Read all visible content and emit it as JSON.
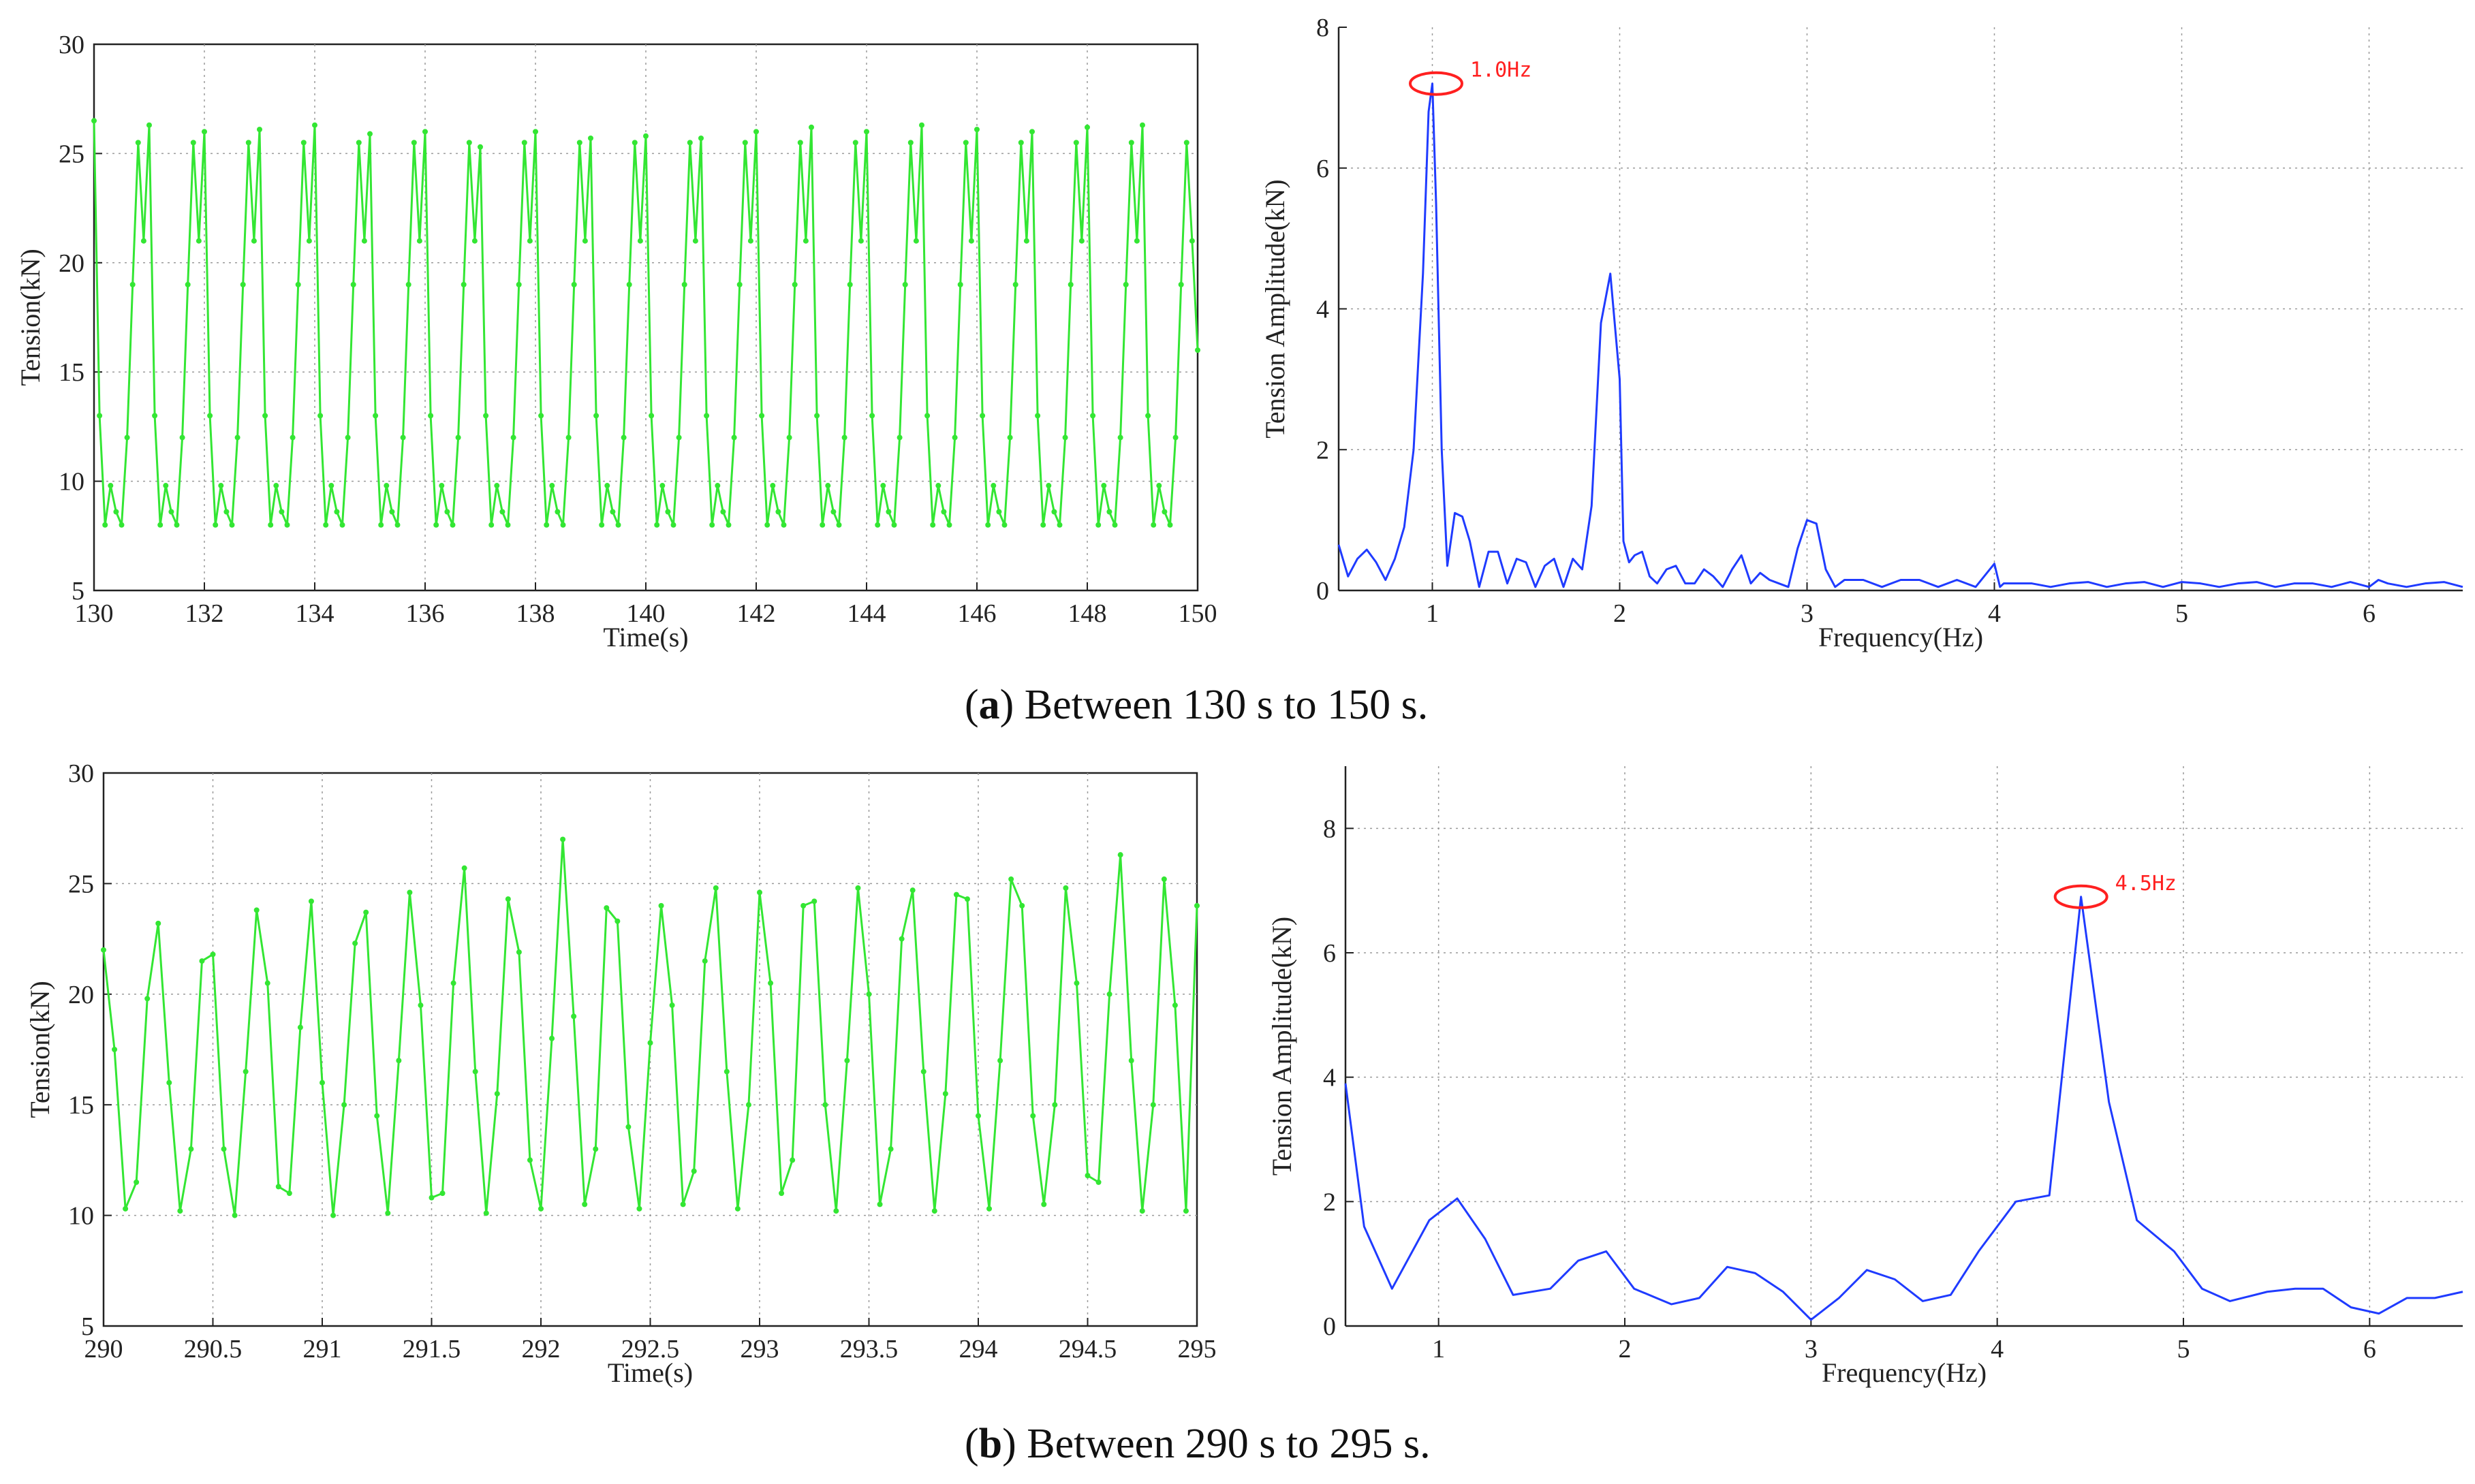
{
  "captions": {
    "a": {
      "label": "a",
      "text": ") Between 130 s to 150 s."
    },
    "b": {
      "label": "b",
      "text": ") Between 290 s to 295 s."
    }
  },
  "colors": {
    "time_series": "#33e633",
    "spectrum": "#1f3bff",
    "annotation": "#ff2020"
  },
  "chart_data": [
    {
      "id": "a-time",
      "type": "line",
      "xlabel": "Time(s)",
      "ylabel": "Tension(kN)",
      "xlim": [
        130,
        150
      ],
      "ylim": [
        5,
        30
      ],
      "xticks": [
        130,
        132,
        134,
        136,
        138,
        140,
        142,
        144,
        146,
        148,
        150
      ],
      "yticks": [
        5,
        10,
        15,
        20,
        25,
        30
      ],
      "grid": true,
      "series": [
        {
          "name": "tension",
          "color": "#33e633",
          "markers": true,
          "x": [
            130.0,
            130.1,
            130.2,
            130.3,
            130.4,
            130.5,
            130.6,
            130.7,
            130.8,
            130.9,
            131.0,
            131.1,
            131.2,
            131.3,
            131.4,
            131.5,
            131.6,
            131.7,
            131.8,
            131.9,
            132.0,
            132.1,
            132.2,
            132.3,
            132.4,
            132.5,
            132.6,
            132.7,
            132.8,
            132.9,
            133.0,
            133.1,
            133.2,
            133.3,
            133.4,
            133.5,
            133.6,
            133.7,
            133.8,
            133.9,
            134.0,
            134.1,
            134.2,
            134.3,
            134.4,
            134.5,
            134.6,
            134.7,
            134.8,
            134.9,
            135.0,
            135.1,
            135.2,
            135.3,
            135.4,
            135.5,
            135.6,
            135.7,
            135.8,
            135.9,
            136.0,
            136.1,
            136.2,
            136.3,
            136.4,
            136.5,
            136.6,
            136.7,
            136.8,
            136.9,
            137.0,
            137.1,
            137.2,
            137.3,
            137.4,
            137.5,
            137.6,
            137.7,
            137.8,
            137.9,
            138.0,
            138.1,
            138.2,
            138.3,
            138.4,
            138.5,
            138.6,
            138.7,
            138.8,
            138.9,
            139.0,
            139.1,
            139.2,
            139.3,
            139.4,
            139.5,
            139.6,
            139.7,
            139.8,
            139.9,
            140.0,
            140.1,
            140.2,
            140.3,
            140.4,
            140.5,
            140.6,
            140.7,
            140.8,
            140.9,
            141.0,
            141.1,
            141.2,
            141.3,
            141.4,
            141.5,
            141.6,
            141.7,
            141.8,
            141.9,
            142.0,
            142.1,
            142.2,
            142.3,
            142.4,
            142.5,
            142.6,
            142.7,
            142.8,
            142.9,
            143.0,
            143.1,
            143.2,
            143.3,
            143.4,
            143.5,
            143.6,
            143.7,
            143.8,
            143.9,
            144.0,
            144.1,
            144.2,
            144.3,
            144.4,
            144.5,
            144.6,
            144.7,
            144.8,
            144.9,
            145.0,
            145.1,
            145.2,
            145.3,
            145.4,
            145.5,
            145.6,
            145.7,
            145.8,
            145.9,
            146.0,
            146.1,
            146.2,
            146.3,
            146.4,
            146.5,
            146.6,
            146.7,
            146.8,
            146.9,
            147.0,
            147.1,
            147.2,
            147.3,
            147.4,
            147.5,
            147.6,
            147.7,
            147.8,
            147.9,
            148.0,
            148.1,
            148.2,
            148.3,
            148.4,
            148.5,
            148.6,
            148.7,
            148.8,
            148.9,
            149.0,
            149.1,
            149.2,
            149.3,
            149.4,
            149.5,
            149.6,
            149.7,
            149.8,
            149.9,
            150.0
          ],
          "y": [
            26.5,
            13.0,
            8.0,
            9.8,
            8.6,
            8.0,
            12.0,
            19.0,
            25.5,
            21.0,
            26.3,
            13.0,
            8.0,
            9.8,
            8.6,
            8.0,
            12.0,
            19.0,
            25.5,
            21.0,
            26.0,
            13.0,
            8.0,
            9.8,
            8.6,
            8.0,
            12.0,
            19.0,
            25.5,
            21.0,
            26.1,
            13.0,
            8.0,
            9.8,
            8.6,
            8.0,
            12.0,
            19.0,
            25.5,
            21.0,
            26.3,
            13.0,
            8.0,
            9.8,
            8.6,
            8.0,
            12.0,
            19.0,
            25.5,
            21.0,
            25.9,
            13.0,
            8.0,
            9.8,
            8.6,
            8.0,
            12.0,
            19.0,
            25.5,
            21.0,
            26.0,
            13.0,
            8.0,
            9.8,
            8.6,
            8.0,
            12.0,
            19.0,
            25.5,
            21.0,
            25.3,
            13.0,
            8.0,
            9.8,
            8.6,
            8.0,
            12.0,
            19.0,
            25.5,
            21.0,
            26.0,
            13.0,
            8.0,
            9.8,
            8.6,
            8.0,
            12.0,
            19.0,
            25.5,
            21.0,
            25.7,
            13.0,
            8.0,
            9.8,
            8.6,
            8.0,
            12.0,
            19.0,
            25.5,
            21.0,
            25.8,
            13.0,
            8.0,
            9.8,
            8.6,
            8.0,
            12.0,
            19.0,
            25.5,
            21.0,
            25.7,
            13.0,
            8.0,
            9.8,
            8.6,
            8.0,
            12.0,
            19.0,
            25.5,
            21.0,
            26.0,
            13.0,
            8.0,
            9.8,
            8.6,
            8.0,
            12.0,
            19.0,
            25.5,
            21.0,
            26.2,
            13.0,
            8.0,
            9.8,
            8.6,
            8.0,
            12.0,
            19.0,
            25.5,
            21.0,
            26.0,
            13.0,
            8.0,
            9.8,
            8.6,
            8.0,
            12.0,
            19.0,
            25.5,
            21.0,
            26.3,
            13.0,
            8.0,
            9.8,
            8.6,
            8.0,
            12.0,
            19.0,
            25.5,
            21.0,
            26.1,
            13.0,
            8.0,
            9.8,
            8.6,
            8.0,
            12.0,
            19.0,
            25.5,
            21.0,
            26.0,
            13.0,
            8.0,
            9.8,
            8.6,
            8.0,
            12.0,
            19.0,
            25.5,
            21.0,
            26.2,
            13.0,
            8.0,
            9.8,
            8.6,
            8.0,
            12.0,
            19.0,
            25.5,
            21.0,
            26.3,
            13.0,
            8.0,
            9.8,
            8.6,
            8.0,
            12.0,
            19.0,
            25.5,
            21.0,
            16.0
          ]
        }
      ]
    },
    {
      "id": "a-spectrum",
      "type": "line",
      "xlabel": "Frequency(Hz)",
      "ylabel": "Tension Amplitude(kN)",
      "xlim": [
        0.5,
        6.5
      ],
      "ylim": [
        0,
        8
      ],
      "xticks": [
        1,
        2,
        3,
        4,
        5,
        6
      ],
      "yticks": [
        0,
        2,
        4,
        6,
        8
      ],
      "grid": true,
      "series": [
        {
          "name": "amplitude",
          "color": "#1f3bff",
          "markers": false,
          "x": [
            0.5,
            0.55,
            0.6,
            0.65,
            0.7,
            0.75,
            0.8,
            0.85,
            0.9,
            0.95,
            0.98,
            1.0,
            1.02,
            1.05,
            1.08,
            1.12,
            1.16,
            1.2,
            1.25,
            1.3,
            1.35,
            1.4,
            1.45,
            1.5,
            1.55,
            1.6,
            1.65,
            1.7,
            1.75,
            1.8,
            1.85,
            1.9,
            1.95,
            2.0,
            2.02,
            2.05,
            2.08,
            2.12,
            2.16,
            2.2,
            2.25,
            2.3,
            2.35,
            2.4,
            2.45,
            2.5,
            2.55,
            2.6,
            2.65,
            2.7,
            2.75,
            2.8,
            2.85,
            2.9,
            2.95,
            3.0,
            3.05,
            3.1,
            3.15,
            3.2,
            3.3,
            3.4,
            3.5,
            3.6,
            3.7,
            3.8,
            3.9,
            4.0,
            4.03,
            4.05,
            4.1,
            4.2,
            4.3,
            4.4,
            4.5,
            4.6,
            4.7,
            4.8,
            4.9,
            5.0,
            5.1,
            5.2,
            5.3,
            5.4,
            5.5,
            5.6,
            5.7,
            5.8,
            5.9,
            6.0,
            6.05,
            6.1,
            6.2,
            6.3,
            6.4,
            6.5
          ],
          "y": [
            0.65,
            0.2,
            0.45,
            0.58,
            0.4,
            0.15,
            0.45,
            0.9,
            2.0,
            4.5,
            6.8,
            7.2,
            5.5,
            2.0,
            0.35,
            1.1,
            1.05,
            0.7,
            0.05,
            0.55,
            0.55,
            0.1,
            0.45,
            0.4,
            0.05,
            0.35,
            0.45,
            0.05,
            0.45,
            0.3,
            1.2,
            3.8,
            4.5,
            3.0,
            0.7,
            0.4,
            0.5,
            0.55,
            0.2,
            0.1,
            0.3,
            0.35,
            0.1,
            0.1,
            0.3,
            0.2,
            0.05,
            0.3,
            0.5,
            0.1,
            0.25,
            0.15,
            0.1,
            0.05,
            0.6,
            1.0,
            0.95,
            0.3,
            0.05,
            0.15,
            0.15,
            0.05,
            0.15,
            0.15,
            0.05,
            0.15,
            0.05,
            0.38,
            0.05,
            0.1,
            0.1,
            0.1,
            0.05,
            0.1,
            0.12,
            0.05,
            0.1,
            0.12,
            0.05,
            0.12,
            0.1,
            0.05,
            0.1,
            0.12,
            0.05,
            0.1,
            0.1,
            0.05,
            0.12,
            0.05,
            0.15,
            0.1,
            0.05,
            0.1,
            0.12,
            0.05
          ]
        }
      ],
      "annotations": [
        {
          "text": "1.0Hz",
          "x": 1.02,
          "y": 7.2
        }
      ]
    },
    {
      "id": "b-time",
      "type": "line",
      "xlabel": "Time(s)",
      "ylabel": "Tension(kN)",
      "xlim": [
        290,
        295
      ],
      "ylim": [
        5,
        30
      ],
      "xticks": [
        290,
        290.5,
        291,
        291.5,
        292,
        292.5,
        293,
        293.5,
        294,
        294.5,
        295
      ],
      "yticks": [
        5,
        10,
        15,
        20,
        25,
        30
      ],
      "grid": true,
      "series": [
        {
          "name": "tension",
          "color": "#33e633",
          "markers": true,
          "x": [
            290.0,
            290.05,
            290.1,
            290.15,
            290.2,
            290.25,
            290.3,
            290.35,
            290.4,
            290.45,
            290.5,
            290.55,
            290.6,
            290.65,
            290.7,
            290.75,
            290.8,
            290.85,
            290.9,
            290.95,
            291.0,
            291.05,
            291.1,
            291.15,
            291.2,
            291.25,
            291.3,
            291.35,
            291.4,
            291.45,
            291.5,
            291.55,
            291.6,
            291.65,
            291.7,
            291.75,
            291.8,
            291.85,
            291.9,
            291.95,
            292.0,
            292.05,
            292.1,
            292.15,
            292.2,
            292.25,
            292.3,
            292.35,
            292.4,
            292.45,
            292.5,
            292.55,
            292.6,
            292.65,
            292.7,
            292.75,
            292.8,
            292.85,
            292.9,
            292.95,
            293.0,
            293.05,
            293.1,
            293.15,
            293.2,
            293.25,
            293.3,
            293.35,
            293.4,
            293.45,
            293.5,
            293.55,
            293.6,
            293.65,
            293.7,
            293.75,
            293.8,
            293.85,
            293.9,
            293.95,
            294.0,
            294.05,
            294.1,
            294.15,
            294.2,
            294.25,
            294.3,
            294.35,
            294.4,
            294.45,
            294.5,
            294.55,
            294.6,
            294.65,
            294.7,
            294.75,
            294.8,
            294.85,
            294.9,
            294.95,
            295.0
          ],
          "y": [
            22.0,
            17.5,
            10.3,
            11.5,
            19.8,
            23.2,
            16.0,
            10.2,
            13.0,
            21.5,
            21.8,
            13.0,
            10.0,
            16.5,
            23.8,
            20.5,
            11.3,
            11.0,
            18.5,
            24.2,
            16.0,
            10.0,
            15.0,
            22.3,
            23.7,
            14.5,
            10.1,
            17.0,
            24.6,
            19.5,
            10.8,
            11.0,
            20.5,
            25.7,
            16.5,
            10.1,
            15.5,
            24.3,
            21.9,
            12.5,
            10.3,
            18.0,
            27.0,
            19.0,
            10.5,
            13.0,
            23.9,
            23.3,
            14.0,
            10.3,
            17.8,
            24.0,
            19.5,
            10.5,
            12.0,
            21.5,
            24.8,
            16.5,
            10.3,
            15.0,
            24.6,
            20.5,
            11.0,
            12.5,
            24.0,
            24.2,
            15.0,
            10.2,
            17.0,
            24.8,
            20.0,
            10.5,
            13.0,
            22.5,
            24.7,
            16.5,
            10.2,
            15.5,
            24.5,
            24.3,
            14.5,
            10.3,
            17.0,
            25.2,
            24.0,
            14.5,
            10.5,
            15.0,
            24.8,
            20.5,
            11.8,
            11.5,
            20.0,
            26.3,
            17.0,
            10.2,
            15.0,
            25.2,
            19.5,
            10.2,
            24.0
          ]
        }
      ]
    },
    {
      "id": "b-spectrum",
      "type": "line",
      "xlabel": "Frequency(Hz)",
      "ylabel": "Tension Amplitude(kN)",
      "xlim": [
        0.5,
        6.5
      ],
      "ylim": [
        0,
        9
      ],
      "xticks": [
        1,
        2,
        3,
        4,
        5,
        6
      ],
      "yticks": [
        0,
        2,
        4,
        6,
        8
      ],
      "grid": true,
      "series": [
        {
          "name": "amplitude",
          "color": "#1f3bff",
          "markers": false,
          "x": [
            0.5,
            0.6,
            0.75,
            0.95,
            1.1,
            1.25,
            1.4,
            1.6,
            1.75,
            1.9,
            2.05,
            2.25,
            2.4,
            2.55,
            2.7,
            2.85,
            3.0,
            3.15,
            3.3,
            3.45,
            3.6,
            3.75,
            3.9,
            4.1,
            4.28,
            4.45,
            4.6,
            4.75,
            4.95,
            5.1,
            5.25,
            5.45,
            5.6,
            5.75,
            5.9,
            6.05,
            6.2,
            6.35,
            6.5
          ],
          "y": [
            3.9,
            1.6,
            0.6,
            1.7,
            2.05,
            1.4,
            0.5,
            0.6,
            1.05,
            1.2,
            0.6,
            0.35,
            0.45,
            0.95,
            0.85,
            0.55,
            0.1,
            0.45,
            0.9,
            0.75,
            0.4,
            0.5,
            1.2,
            2.0,
            2.1,
            6.9,
            3.6,
            1.7,
            1.2,
            0.6,
            0.4,
            0.55,
            0.6,
            0.6,
            0.3,
            0.2,
            0.45,
            0.45,
            0.55
          ]
        }
      ],
      "annotations": [
        {
          "text": "4.5Hz",
          "x": 4.45,
          "y": 6.9
        }
      ]
    }
  ]
}
